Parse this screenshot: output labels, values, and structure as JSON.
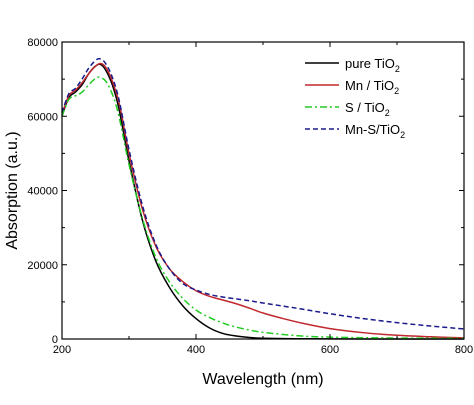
{
  "chart_data": {
    "type": "line",
    "xlabel": "Wavelength (nm)",
    "ylabel": "Absorption (a.u.)",
    "xlim": [
      200,
      800
    ],
    "ylim": [
      0,
      80000
    ],
    "x_ticks": [
      200,
      400,
      600,
      800
    ],
    "y_ticks": [
      0,
      20000,
      40000,
      60000,
      80000
    ],
    "grid": false,
    "legend_position": "top-right",
    "series": [
      {
        "name": "pure TiO2",
        "legend_main": "pure TiO",
        "legend_sub": "2",
        "color": "#000000",
        "dash": "solid",
        "points": [
          [
            200,
            60000
          ],
          [
            210,
            65000
          ],
          [
            220,
            66500
          ],
          [
            230,
            68500
          ],
          [
            240,
            71500
          ],
          [
            250,
            73500
          ],
          [
            257,
            74000
          ],
          [
            265,
            72500
          ],
          [
            275,
            68500
          ],
          [
            285,
            62000
          ],
          [
            300,
            48000
          ],
          [
            320,
            32000
          ],
          [
            340,
            21000
          ],
          [
            360,
            14000
          ],
          [
            380,
            9000
          ],
          [
            400,
            5500
          ],
          [
            420,
            3000
          ],
          [
            440,
            1500
          ],
          [
            460,
            800
          ],
          [
            480,
            400
          ],
          [
            500,
            200
          ],
          [
            550,
            80
          ],
          [
            600,
            30
          ],
          [
            700,
            10
          ],
          [
            800,
            0
          ]
        ]
      },
      {
        "name": "Mn / TiO2",
        "legend_main": "Mn / TiO",
        "legend_sub": "2",
        "color": "#c0282d",
        "dash": "solid",
        "points": [
          [
            200,
            60500
          ],
          [
            210,
            65500
          ],
          [
            220,
            67000
          ],
          [
            230,
            69000
          ],
          [
            240,
            71500
          ],
          [
            250,
            73500
          ],
          [
            258,
            74200
          ],
          [
            266,
            73000
          ],
          [
            276,
            69000
          ],
          [
            286,
            63000
          ],
          [
            300,
            50000
          ],
          [
            320,
            35000
          ],
          [
            340,
            25000
          ],
          [
            360,
            19000
          ],
          [
            380,
            15500
          ],
          [
            400,
            13000
          ],
          [
            420,
            11500
          ],
          [
            440,
            10500
          ],
          [
            460,
            9500
          ],
          [
            480,
            8300
          ],
          [
            500,
            7000
          ],
          [
            530,
            5500
          ],
          [
            560,
            4200
          ],
          [
            600,
            2800
          ],
          [
            650,
            1700
          ],
          [
            700,
            1000
          ],
          [
            750,
            600
          ],
          [
            800,
            300
          ]
        ]
      },
      {
        "name": "S / TiO2",
        "legend_main": "S /  TiO",
        "legend_sub": "2",
        "color": "#22cc22",
        "dash": "dashdot",
        "points": [
          [
            200,
            60000
          ],
          [
            210,
            64500
          ],
          [
            220,
            65500
          ],
          [
            230,
            66500
          ],
          [
            240,
            68500
          ],
          [
            250,
            70200
          ],
          [
            256,
            70500
          ],
          [
            265,
            69500
          ],
          [
            275,
            66000
          ],
          [
            285,
            60000
          ],
          [
            300,
            47000
          ],
          [
            320,
            32500
          ],
          [
            340,
            22000
          ],
          [
            360,
            15500
          ],
          [
            380,
            11000
          ],
          [
            400,
            7800
          ],
          [
            420,
            5800
          ],
          [
            440,
            4300
          ],
          [
            460,
            3200
          ],
          [
            480,
            2400
          ],
          [
            500,
            1800
          ],
          [
            550,
            900
          ],
          [
            600,
            500
          ],
          [
            700,
            250
          ],
          [
            800,
            150
          ]
        ]
      },
      {
        "name": "Mn-S/TiO2",
        "legend_main": "Mn-S/TiO",
        "legend_sub": "2",
        "color": "#1a1a8c",
        "dash": "dashed",
        "points": [
          [
            200,
            61000
          ],
          [
            210,
            66000
          ],
          [
            220,
            67500
          ],
          [
            230,
            70000
          ],
          [
            240,
            73000
          ],
          [
            250,
            75000
          ],
          [
            256,
            75500
          ],
          [
            264,
            74500
          ],
          [
            274,
            71000
          ],
          [
            285,
            64500
          ],
          [
            300,
            51000
          ],
          [
            320,
            36000
          ],
          [
            340,
            25500
          ],
          [
            360,
            19000
          ],
          [
            380,
            15000
          ],
          [
            400,
            13200
          ],
          [
            420,
            12000
          ],
          [
            440,
            11300
          ],
          [
            460,
            10800
          ],
          [
            480,
            10300
          ],
          [
            500,
            9700
          ],
          [
            550,
            8300
          ],
          [
            600,
            6800
          ],
          [
            650,
            5500
          ],
          [
            700,
            4400
          ],
          [
            750,
            3500
          ],
          [
            800,
            2700
          ]
        ]
      }
    ]
  }
}
